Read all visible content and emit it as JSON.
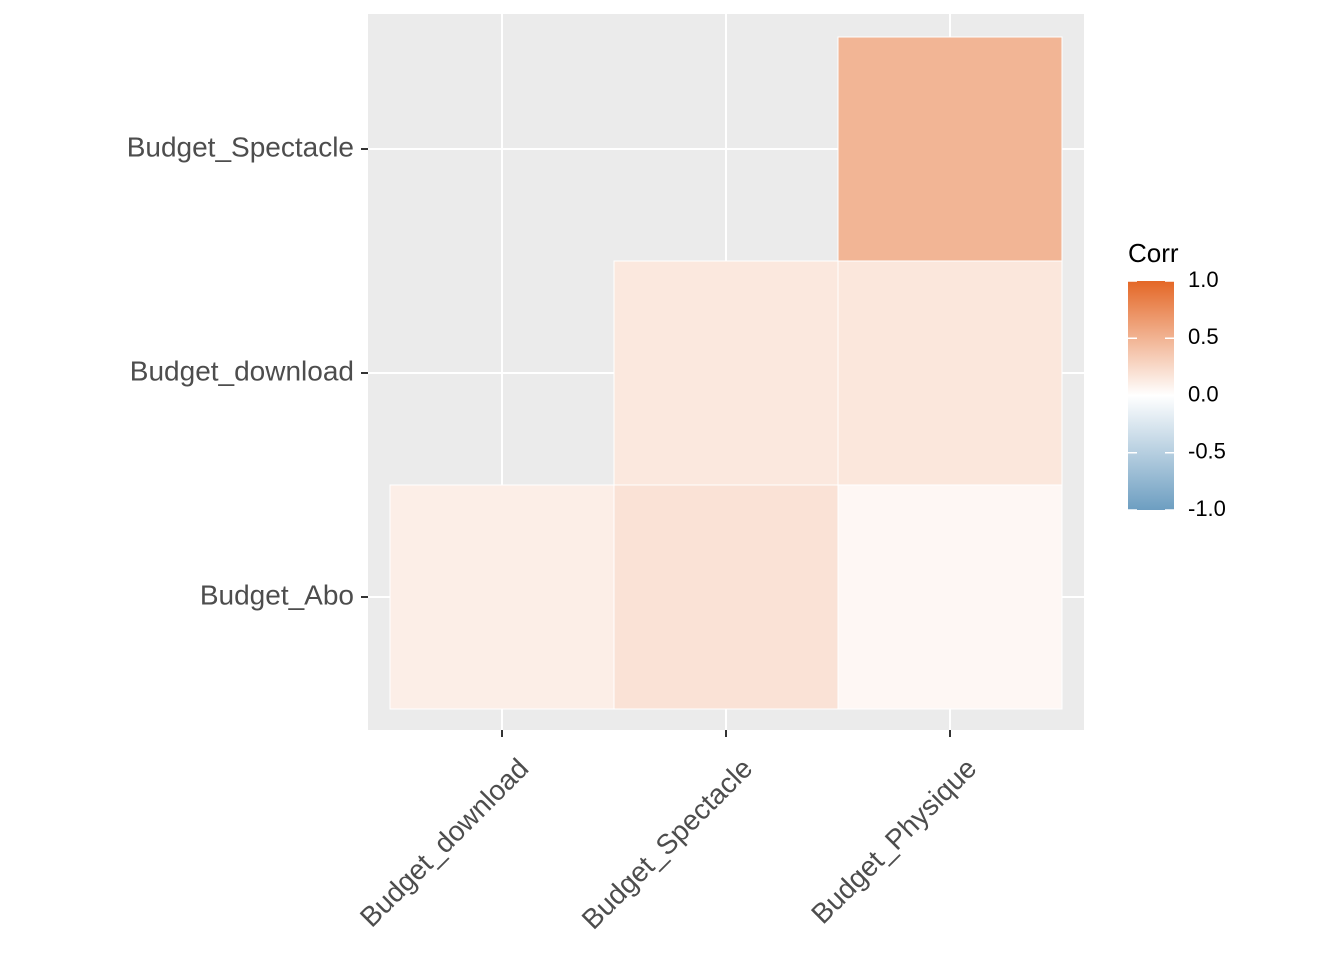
{
  "chart_data": {
    "type": "heatmap",
    "title": "",
    "xlabel": "",
    "ylabel": "",
    "x_categories": [
      "Budget_download",
      "Budget_Spectacle",
      "Budget_Physique"
    ],
    "y_categories": [
      "Budget_Abo",
      "Budget_download",
      "Budget_Spectacle"
    ],
    "cells": [
      {
        "x": "Budget_download",
        "y": "Budget_Abo",
        "value": 0.11
      },
      {
        "x": "Budget_Spectacle",
        "y": "Budget_Abo",
        "value": 0.19
      },
      {
        "x": "Budget_Physique",
        "y": "Budget_Abo",
        "value": 0.05
      },
      {
        "x": "Budget_Spectacle",
        "y": "Budget_download",
        "value": 0.15
      },
      {
        "x": "Budget_Physique",
        "y": "Budget_download",
        "value": 0.16
      },
      {
        "x": "Budget_Physique",
        "y": "Budget_Spectacle",
        "value": 0.49
      }
    ],
    "legend": {
      "title": "Corr",
      "position": "right",
      "ticks": [
        1.0,
        0.5,
        0.0,
        -0.5,
        -1.0
      ],
      "tick_labels": [
        "1.0",
        "0.5",
        "0.0",
        "-0.5",
        "-1.0"
      ],
      "range": [
        -1,
        1
      ],
      "colors": {
        "low": "#6D9EC1",
        "mid": "#FFFFFF",
        "high": "#E46726"
      }
    },
    "panel_background": "#EBEBEB",
    "grid": true
  }
}
